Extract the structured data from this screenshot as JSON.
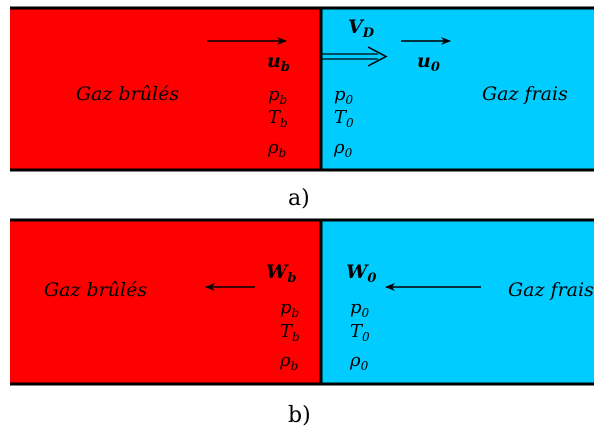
{
  "colors": {
    "burnt": "#ff0000",
    "fresh": "#00ccff",
    "line": "#000000"
  },
  "panel_a": {
    "caption": "a)",
    "burnt_label": "Gaz brûlés",
    "fresh_label": "Gaz frais",
    "burnt_velocity": "u",
    "burnt_velocity_sub": "b",
    "flame_velocity": "V",
    "flame_velocity_sub": "D",
    "fresh_velocity": "u",
    "fresh_velocity_sub": "0",
    "burnt_props": [
      {
        "sym": "p",
        "sub": "b"
      },
      {
        "sym": "T",
        "sub": "b"
      },
      {
        "sym": "ρ",
        "sub": "b"
      }
    ],
    "fresh_props": [
      {
        "sym": "p",
        "sub": "0"
      },
      {
        "sym": "T",
        "sub": "0"
      },
      {
        "sym": "ρ",
        "sub": "0"
      }
    ]
  },
  "panel_b": {
    "caption": "b)",
    "burnt_label": "Gaz brûlés",
    "fresh_label": "Gaz frais",
    "burnt_velocity": "W",
    "burnt_velocity_sub": "b",
    "fresh_velocity": "W",
    "fresh_velocity_sub": "0",
    "burnt_props": [
      {
        "sym": "p",
        "sub": "b"
      },
      {
        "sym": "T",
        "sub": "b"
      },
      {
        "sym": "ρ",
        "sub": "b"
      }
    ],
    "fresh_props": [
      {
        "sym": "p",
        "sub": "0"
      },
      {
        "sym": "T",
        "sub": "0"
      },
      {
        "sym": "ρ",
        "sub": "0"
      }
    ]
  }
}
